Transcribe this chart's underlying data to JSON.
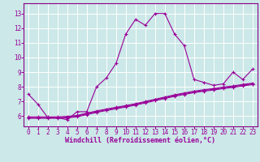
{
  "xlabel": "Windchill (Refroidissement éolien,°C)",
  "bg_color": "#cce8e8",
  "line_color": "#990099",
  "grid_color": "#ffffff",
  "spine_color": "#880088",
  "x_ticks": [
    0,
    1,
    2,
    3,
    4,
    5,
    6,
    7,
    8,
    9,
    10,
    11,
    12,
    13,
    14,
    15,
    16,
    17,
    18,
    19,
    20,
    21,
    22,
    23
  ],
  "y_ticks": [
    6,
    7,
    8,
    9,
    10,
    11,
    12,
    13
  ],
  "ylim": [
    5.3,
    13.7
  ],
  "xlim": [
    -0.5,
    23.5
  ],
  "main_y": [
    7.5,
    6.8,
    5.9,
    5.9,
    5.75,
    6.3,
    6.3,
    8.0,
    8.6,
    9.6,
    11.6,
    12.6,
    12.2,
    13.0,
    13.0,
    11.6,
    10.8,
    8.5,
    8.3,
    8.1,
    8.2,
    9.0,
    8.5,
    9.2
  ],
  "lin1_y": [
    5.85,
    5.85,
    5.85,
    5.85,
    5.88,
    5.95,
    6.1,
    6.25,
    6.38,
    6.5,
    6.62,
    6.75,
    6.9,
    7.05,
    7.2,
    7.35,
    7.48,
    7.6,
    7.7,
    7.78,
    7.88,
    7.96,
    8.06,
    8.15
  ],
  "lin2_y": [
    5.9,
    5.9,
    5.9,
    5.9,
    5.93,
    6.0,
    6.15,
    6.3,
    6.43,
    6.55,
    6.67,
    6.8,
    6.95,
    7.1,
    7.25,
    7.4,
    7.53,
    7.65,
    7.75,
    7.83,
    7.93,
    8.01,
    8.11,
    8.2
  ],
  "lin3_y": [
    5.95,
    5.95,
    5.95,
    5.95,
    5.98,
    6.05,
    6.2,
    6.35,
    6.48,
    6.6,
    6.72,
    6.85,
    7.0,
    7.15,
    7.3,
    7.45,
    7.58,
    7.7,
    7.8,
    7.88,
    7.98,
    8.06,
    8.16,
    8.25
  ],
  "tick_fontsize": 5.5,
  "xlabel_fontsize": 6.0
}
